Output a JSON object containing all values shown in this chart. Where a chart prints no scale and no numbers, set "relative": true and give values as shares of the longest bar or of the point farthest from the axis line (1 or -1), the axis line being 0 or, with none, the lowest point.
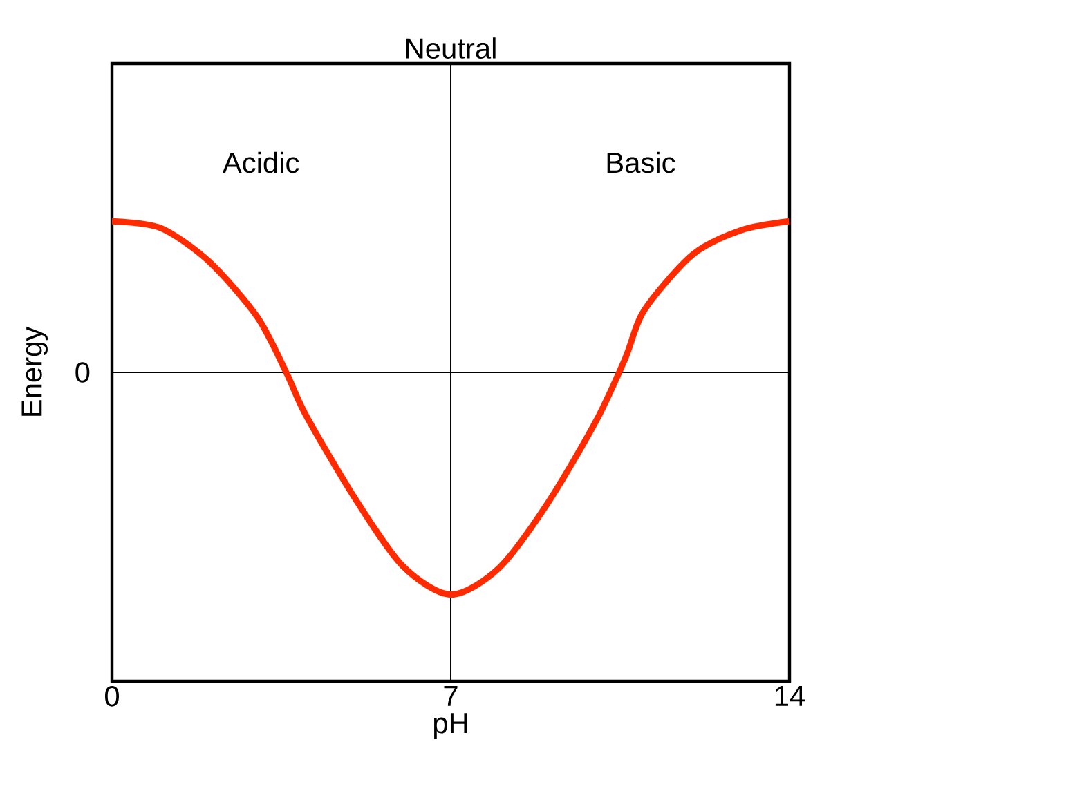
{
  "chart_data": {
    "type": "line",
    "relative": true,
    "xlabel": "pH",
    "ylabel": "Energy",
    "x": [
      0,
      1,
      2,
      3,
      3.6,
      4,
      5,
      6,
      7,
      8,
      9,
      10,
      10.6,
      11,
      12,
      13,
      14
    ],
    "series": [
      {
        "color": "#ff2a00",
        "values": [
          0.68,
          0.65,
          0.5,
          0.25,
          0,
          -0.19,
          -0.56,
          -0.87,
          -1,
          -0.88,
          -0.59,
          -0.22,
          0.06,
          0.28,
          0.53,
          0.64,
          0.68
        ]
      }
    ],
    "xlim": [
      0,
      14
    ],
    "xticks": [
      0,
      7,
      14
    ],
    "ref_lines": [
      {
        "axis": "x",
        "value": 7,
        "label": "Neutral"
      },
      {
        "axis": "y",
        "value": 0,
        "label": "0"
      }
    ],
    "annotations": [
      "Acidic",
      "Basic"
    ],
    "marker": "none",
    "line_style": "solid"
  }
}
